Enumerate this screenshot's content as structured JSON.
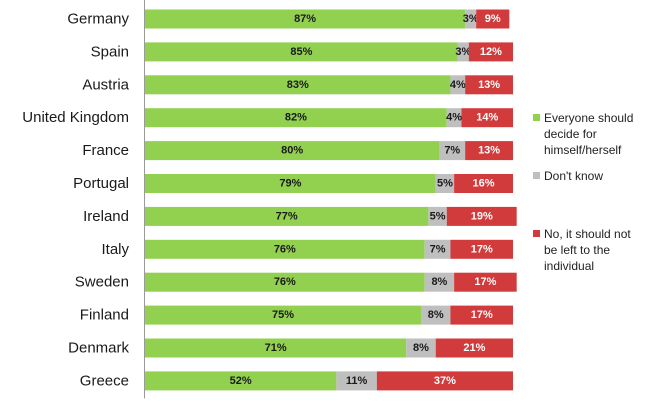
{
  "chart_data": {
    "type": "bar",
    "orientation": "horizontal",
    "stacked": true,
    "percent": true,
    "xlim": [
      0,
      100
    ],
    "grid": false,
    "legend_position": "right",
    "categories": [
      "Germany",
      "Spain",
      "Austria",
      "United Kingdom",
      "France",
      "Portugal",
      "Ireland",
      "Italy",
      "Sweden",
      "Finland",
      "Denmark",
      "Greece"
    ],
    "series": [
      {
        "name": "Everyone should decide for himself/herself",
        "color": "#92d050",
        "label_color": "#1a1a1a",
        "values": [
          87,
          85,
          83,
          82,
          80,
          79,
          77,
          76,
          76,
          75,
          71,
          52
        ],
        "labels": [
          "87%",
          "85%",
          "83%",
          "82%",
          "80%",
          "79%",
          "77%",
          "76%",
          "76%",
          "75%",
          "71%",
          "52%"
        ]
      },
      {
        "name": "Don't know",
        "color": "#bfbfbf",
        "label_color": "#1a1a1a",
        "values": [
          3,
          3,
          4,
          4,
          7,
          5,
          5,
          7,
          8,
          8,
          8,
          11
        ],
        "labels": [
          "3%",
          "3%",
          "4%",
          "4%",
          "7%",
          "5%",
          "5%",
          "7%",
          "8%",
          "8%",
          "8%",
          "11%"
        ]
      },
      {
        "name": "No, it should not be left to the individual",
        "color": "#d13b3b",
        "label_color": "#ffffff",
        "values": [
          9,
          12,
          13,
          14,
          13,
          16,
          19,
          17,
          17,
          17,
          21,
          37
        ],
        "labels": [
          "9%",
          "12%",
          "13%",
          "14%",
          "13%",
          "16%",
          "19%",
          "17%",
          "17%",
          "17%",
          "21%",
          "37%"
        ]
      }
    ]
  },
  "legend": {
    "items": [
      {
        "label": "Everyone should decide for himself/herself",
        "color": "#92d050"
      },
      {
        "label": "Don't know",
        "color": "#bfbfbf"
      },
      {
        "label": "No, it should not be left to the individual",
        "color": "#d13b3b"
      }
    ]
  }
}
